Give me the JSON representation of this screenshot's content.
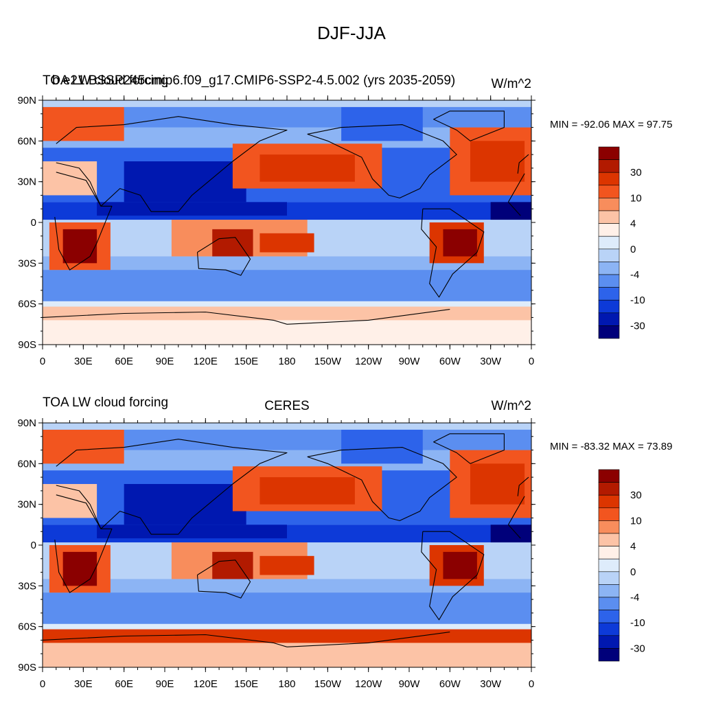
{
  "figure_title": "DJF-JJA",
  "panels": [
    {
      "id": "top",
      "left_title_a": "TOA LW cloud forcing",
      "left_title_b": "b.e21.BSSP245cmip6.f09_g17.CMIP6-SSP2-4.5.002 (yrs 2035-2059)",
      "center_title": "",
      "units": "W/m^2",
      "min_max": "MIN = -92.06 MAX =  97.75"
    },
    {
      "id": "bottom",
      "left_title_a": "TOA LW cloud forcing",
      "left_title_b": "",
      "center_title": "CERES",
      "units": "W/m^2",
      "min_max": "MIN = -83.32 MAX =  73.89"
    }
  ],
  "lat_labels": [
    "90N",
    "60N",
    "30N",
    "0",
    "30S",
    "60S",
    "90S"
  ],
  "lon_labels": [
    "0",
    "30E",
    "60E",
    "90E",
    "120E",
    "150E",
    "180",
    "150W",
    "120W",
    "90W",
    "60W",
    "30W",
    "0"
  ],
  "colorbar": {
    "labels": [
      "30",
      "10",
      "4",
      "0",
      "-4",
      "-10",
      "-30"
    ],
    "colors": [
      "#8b0000",
      "#b21a00",
      "#dc3500",
      "#f2551f",
      "#f88d5c",
      "#fcc3a6",
      "#fff0e8",
      "#deecfb",
      "#b9d3f7",
      "#8cb4f4",
      "#5b8ef0",
      "#2d63ea",
      "#0d3ad8",
      "#0018b0",
      "#00007a"
    ]
  }
}
